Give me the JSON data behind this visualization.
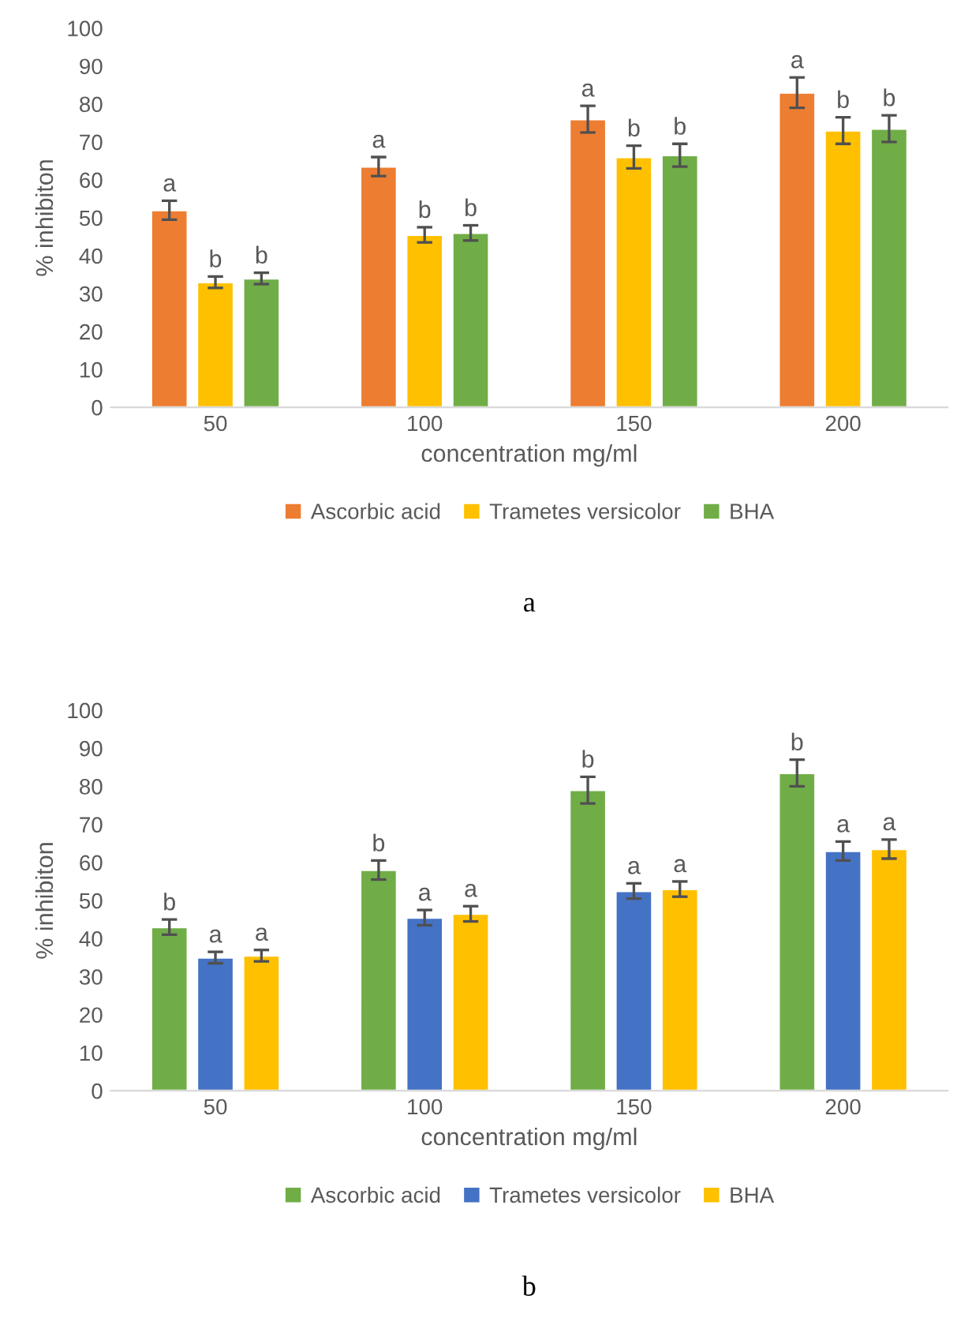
{
  "chart_data": [
    {
      "type": "bar",
      "xlabel": "concentration mg/ml",
      "ylabel": "% inhibiton",
      "categories": [
        "50",
        "100",
        "150",
        "200"
      ],
      "ylim": [
        0,
        100
      ],
      "yticks": [
        0,
        10,
        20,
        30,
        40,
        50,
        60,
        70,
        80,
        90,
        100
      ],
      "grid": false,
      "legend": "bottom",
      "annotations": [
        "a"
      ],
      "series": [
        {
          "name": "Ascorbic acid",
          "color": "#ed7d31",
          "values": [
            52,
            63.5,
            76,
            83
          ],
          "errors": [
            2.5,
            2.5,
            3.5,
            4
          ],
          "value_labels": [
            "a",
            "a",
            "a",
            "a"
          ]
        },
        {
          "name": "Trametes versicolor",
          "color": "#ffc000",
          "values": [
            33,
            45.5,
            66,
            73
          ],
          "errors": [
            1.5,
            2,
            3,
            3.5
          ],
          "value_labels": [
            "b",
            "b",
            "b",
            "b"
          ]
        },
        {
          "name": "BHA",
          "color": "#70ad47",
          "values": [
            34,
            46,
            66.5,
            73.5
          ],
          "errors": [
            1.5,
            2,
            3,
            3.5
          ],
          "value_labels": [
            "b",
            "b",
            "b",
            "b"
          ]
        }
      ]
    },
    {
      "type": "bar",
      "xlabel": "concentration mg/ml",
      "ylabel": "% inhibiton",
      "categories": [
        "50",
        "100",
        "150",
        "200"
      ],
      "ylim": [
        0,
        100
      ],
      "yticks": [
        0,
        10,
        20,
        30,
        40,
        50,
        60,
        70,
        80,
        90,
        100
      ],
      "grid": false,
      "legend": "bottom",
      "annotations": [
        "b"
      ],
      "series": [
        {
          "name": "Ascorbic acid",
          "color": "#70ad47",
          "values": [
            43,
            58,
            79,
            83.5
          ],
          "errors": [
            2,
            2.5,
            3.5,
            3.5
          ],
          "value_labels": [
            "b",
            "b",
            "b",
            "b"
          ]
        },
        {
          "name": "Trametes versicolor",
          "color": "#4472c4",
          "values": [
            35,
            45.5,
            52.5,
            63
          ],
          "errors": [
            1.5,
            2,
            2,
            2.5
          ],
          "value_labels": [
            "a",
            "a",
            "a",
            "a"
          ]
        },
        {
          "name": "BHA",
          "color": "#ffc000",
          "values": [
            35.5,
            46.5,
            53,
            63.5
          ],
          "errors": [
            1.5,
            2,
            2,
            2.5
          ],
          "value_labels": [
            "a",
            "a",
            "a",
            "a"
          ]
        }
      ]
    }
  ]
}
